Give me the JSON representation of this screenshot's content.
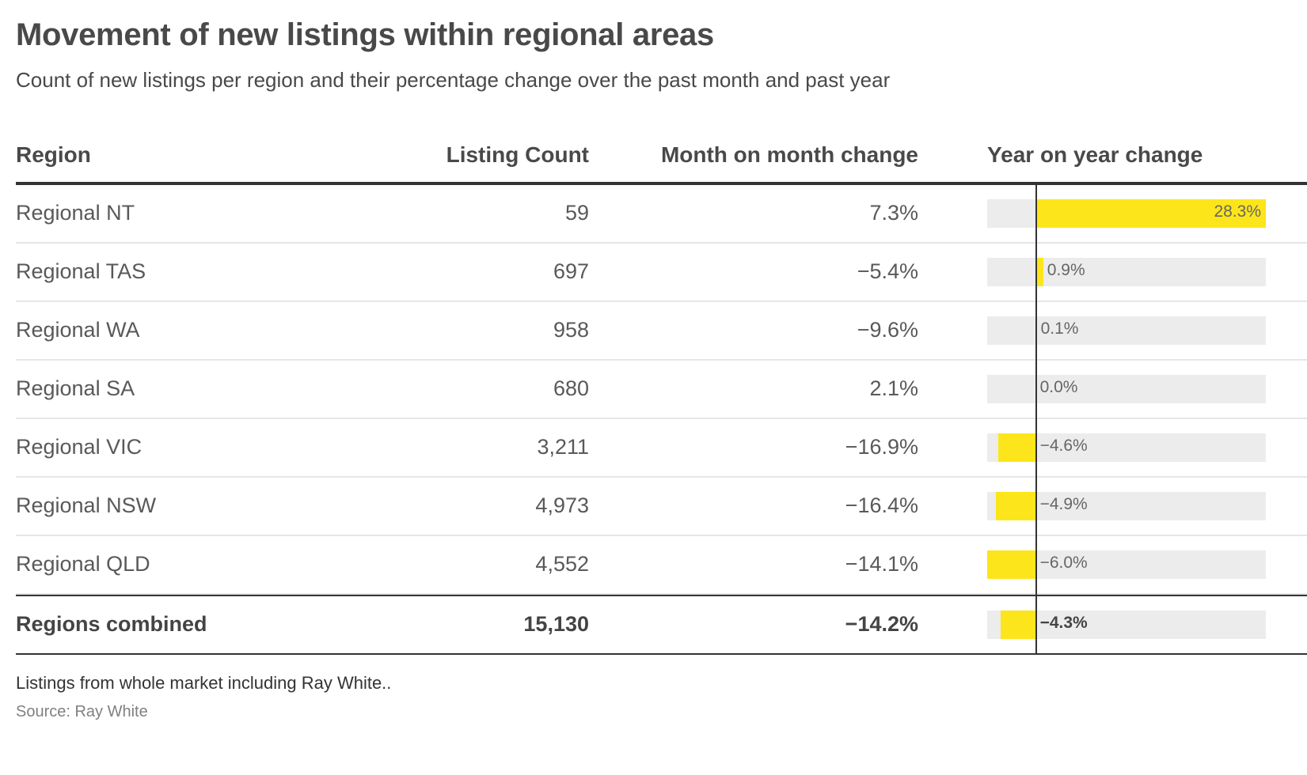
{
  "title": "Movement of new listings within regional areas",
  "subtitle": "Count of new listings per region and their percentage change over the past month and past year",
  "note": "Listings from whole market including Ray White..",
  "source": "Source: Ray White",
  "colors": {
    "bar": "#fde51b",
    "bar_background": "#ececec",
    "zero_line": "#333333"
  },
  "chart_data": {
    "type": "table",
    "columns": [
      "Region",
      "Listing Count",
      "Month on month change",
      "Year on year change"
    ],
    "rows": [
      {
        "region": "Regional NT",
        "count": "59",
        "mom": "7.3%",
        "yoy_label": "28.3%",
        "yoy": 28.3
      },
      {
        "region": "Regional TAS",
        "count": "697",
        "mom": "−5.4%",
        "yoy_label": "0.9%",
        "yoy": 0.9
      },
      {
        "region": "Regional WA",
        "count": "958",
        "mom": "−9.6%",
        "yoy_label": "0.1%",
        "yoy": 0.1
      },
      {
        "region": "Regional SA",
        "count": "680",
        "mom": "2.1%",
        "yoy_label": "0.0%",
        "yoy": 0.0
      },
      {
        "region": "Regional VIC",
        "count": "3,211",
        "mom": "−16.9%",
        "yoy_label": "−4.6%",
        "yoy": -4.6
      },
      {
        "region": "Regional NSW",
        "count": "4,973",
        "mom": "−16.4%",
        "yoy_label": "−4.9%",
        "yoy": -4.9
      },
      {
        "region": "Regional QLD",
        "count": "4,552",
        "mom": "−14.1%",
        "yoy_label": "−6.0%",
        "yoy": -6.0
      }
    ],
    "total": {
      "region": "Regions combined",
      "count": "15,130",
      "mom": "−14.2%",
      "yoy_label": "−4.3%",
      "yoy": -4.3
    },
    "yoy_range": [
      -6.0,
      28.3
    ]
  }
}
